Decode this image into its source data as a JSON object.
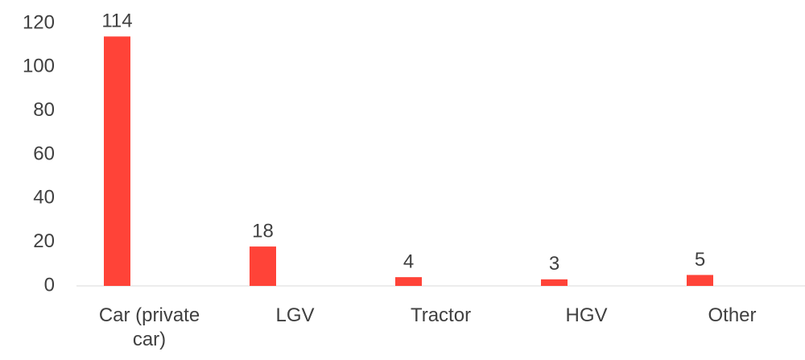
{
  "chart_data": {
    "type": "bar",
    "categories": [
      "Car (private car)",
      "LGV",
      "Tractor",
      "HGV",
      "Other"
    ],
    "values": [
      114,
      18,
      4,
      3,
      5
    ],
    "color": "#ff4338",
    "ylim": [
      0,
      120
    ],
    "yticks": [
      0,
      20,
      40,
      60,
      80,
      100,
      120
    ],
    "grid": false
  }
}
